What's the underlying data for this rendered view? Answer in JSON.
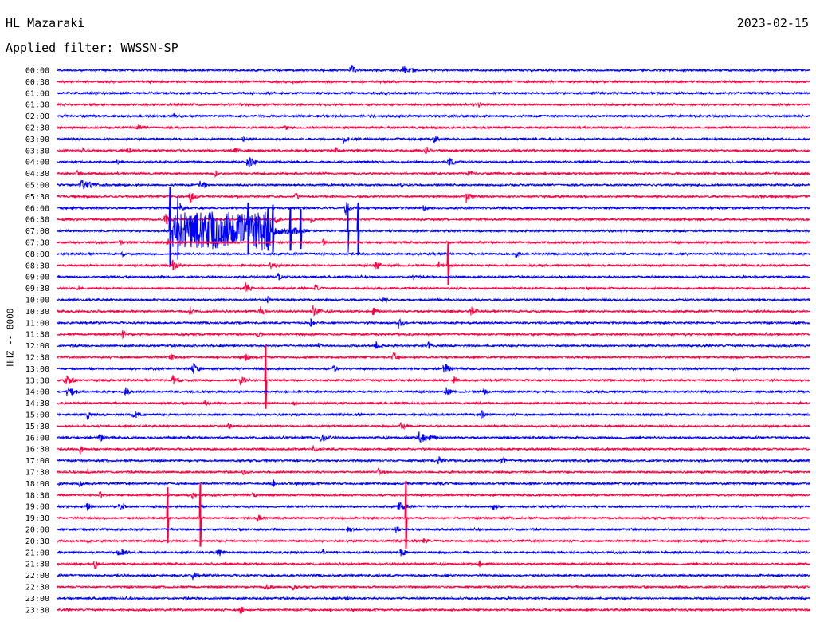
{
  "header": {
    "station": "HL Mazaraki",
    "date": "2023-02-15",
    "filter": "Applied filter: WWSSN-SP"
  },
  "colors": {
    "even_hour": "#0000ff",
    "half_hour": "#ff0040",
    "text": "#000000"
  },
  "chart_data": {
    "type": "line",
    "title": "HL Mazaraki",
    "ylabel": "HHZ -- 8000",
    "rows": [
      "00:00",
      "00:30",
      "01:00",
      "01:30",
      "02:00",
      "02:30",
      "03:00",
      "03:30",
      "04:00",
      "04:30",
      "05:00",
      "05:30",
      "06:00",
      "06:30",
      "07:00",
      "07:30",
      "08:00",
      "08:30",
      "09:00",
      "09:30",
      "10:00",
      "10:30",
      "11:00",
      "11:30",
      "12:00",
      "12:30",
      "13:00",
      "13:30",
      "14:00",
      "14:30",
      "15:00",
      "15:30",
      "16:00",
      "16:30",
      "17:00",
      "17:30",
      "18:00",
      "18:30",
      "19:00",
      "19:30",
      "20:00",
      "20:30",
      "21:00",
      "21:30",
      "22:00",
      "22:30",
      "23:00",
      "23:30"
    ],
    "row_duration_min": 30,
    "x_range_min": [
      0,
      30
    ],
    "events": [
      {
        "row": 0,
        "t": 11.7,
        "amp": 8,
        "dur": 0.6
      },
      {
        "row": 0,
        "t": 13.8,
        "amp": 6,
        "dur": 1.2
      },
      {
        "row": 1,
        "t": 9.4,
        "amp": 3,
        "dur": 0.9
      },
      {
        "row": 2,
        "t": 13.1,
        "amp": 4,
        "dur": 0.5
      },
      {
        "row": 3,
        "t": 16.8,
        "amp": 4,
        "dur": 0.7
      },
      {
        "row": 3,
        "t": 8.0,
        "amp": 2,
        "dur": 0.5
      },
      {
        "row": 4,
        "t": 4.6,
        "amp": 5,
        "dur": 0.4
      },
      {
        "row": 5,
        "t": 3.2,
        "amp": 6,
        "dur": 0.7
      },
      {
        "row": 5,
        "t": 9.1,
        "amp": 4,
        "dur": 0.4
      },
      {
        "row": 6,
        "t": 11.4,
        "amp": 6,
        "dur": 0.6
      },
      {
        "row": 6,
        "t": 15.0,
        "amp": 7,
        "dur": 0.5
      },
      {
        "row": 6,
        "t": 7.4,
        "amp": 4,
        "dur": 0.4
      },
      {
        "row": 7,
        "t": 1.0,
        "amp": 4,
        "dur": 0.4
      },
      {
        "row": 7,
        "t": 2.8,
        "amp": 5,
        "dur": 0.6
      },
      {
        "row": 7,
        "t": 7.1,
        "amp": 5,
        "dur": 0.5
      },
      {
        "row": 7,
        "t": 11.1,
        "amp": 5,
        "dur": 0.4
      },
      {
        "row": 7,
        "t": 14.7,
        "amp": 6,
        "dur": 0.6
      },
      {
        "row": 8,
        "t": 2.4,
        "amp": 6,
        "dur": 0.4
      },
      {
        "row": 8,
        "t": 7.6,
        "amp": 9,
        "dur": 0.9
      },
      {
        "row": 8,
        "t": 15.6,
        "amp": 6,
        "dur": 1.0
      },
      {
        "row": 9,
        "t": 0.8,
        "amp": 5,
        "dur": 0.4
      },
      {
        "row": 9,
        "t": 6.3,
        "amp": 5,
        "dur": 0.4
      },
      {
        "row": 9,
        "t": 16.4,
        "amp": 6,
        "dur": 0.5
      },
      {
        "row": 10,
        "t": 0.9,
        "amp": 7,
        "dur": 1.8
      },
      {
        "row": 10,
        "t": 5.7,
        "amp": 6,
        "dur": 0.8
      },
      {
        "row": 10,
        "t": 13.7,
        "amp": 5,
        "dur": 0.5
      },
      {
        "row": 11,
        "t": 5.3,
        "amp": 9,
        "dur": 0.6
      },
      {
        "row": 11,
        "t": 9.5,
        "amp": 6,
        "dur": 0.5
      },
      {
        "row": 11,
        "t": 16.3,
        "amp": 9,
        "dur": 0.6
      },
      {
        "row": 12,
        "t": 4.9,
        "amp": 7,
        "dur": 0.6
      },
      {
        "row": 12,
        "t": 11.5,
        "amp": 10,
        "dur": 0.5
      },
      {
        "row": 12,
        "t": 14.6,
        "amp": 5,
        "dur": 0.5
      },
      {
        "row": 13,
        "t": 4.3,
        "amp": 10,
        "dur": 0.6
      },
      {
        "row": 13,
        "t": 8.7,
        "amp": 7,
        "dur": 0.5
      },
      {
        "row": 13,
        "t": 10.1,
        "amp": 6,
        "dur": 0.4
      },
      {
        "row": 14,
        "t": 5.4,
        "amp": 12,
        "dur": 2.4
      },
      {
        "row": 14,
        "t": 9.5,
        "amp": 6,
        "dur": 0.4
      },
      {
        "row": 15,
        "t": 2.5,
        "amp": 5,
        "dur": 0.4
      },
      {
        "row": 15,
        "t": 4.4,
        "amp": 6,
        "dur": 0.3
      },
      {
        "row": 15,
        "t": 10.6,
        "amp": 5,
        "dur": 0.4
      },
      {
        "row": 16,
        "t": 2.6,
        "amp": 4,
        "dur": 0.3
      },
      {
        "row": 16,
        "t": 18.3,
        "amp": 6,
        "dur": 0.5
      },
      {
        "row": 17,
        "t": 4.6,
        "amp": 8,
        "dur": 0.6
      },
      {
        "row": 17,
        "t": 8.5,
        "amp": 6,
        "dur": 0.8
      },
      {
        "row": 17,
        "t": 12.7,
        "amp": 7,
        "dur": 0.6
      },
      {
        "row": 17,
        "t": 15.2,
        "amp": 6,
        "dur": 0.5
      },
      {
        "row": 18,
        "t": 8.8,
        "amp": 7,
        "dur": 0.4
      },
      {
        "row": 18,
        "t": 14.2,
        "amp": 5,
        "dur": 0.6
      },
      {
        "row": 19,
        "t": 0.8,
        "amp": 5,
        "dur": 0.4
      },
      {
        "row": 19,
        "t": 7.5,
        "amp": 8,
        "dur": 0.6
      },
      {
        "row": 19,
        "t": 10.3,
        "amp": 6,
        "dur": 0.5
      },
      {
        "row": 20,
        "t": 8.4,
        "amp": 5,
        "dur": 0.4
      },
      {
        "row": 20,
        "t": 13.0,
        "amp": 6,
        "dur": 0.5
      },
      {
        "row": 21,
        "t": 5.3,
        "amp": 7,
        "dur": 0.4
      },
      {
        "row": 21,
        "t": 8.1,
        "amp": 10,
        "dur": 0.5
      },
      {
        "row": 21,
        "t": 10.2,
        "amp": 8,
        "dur": 0.8
      },
      {
        "row": 21,
        "t": 12.6,
        "amp": 6,
        "dur": 0.5
      },
      {
        "row": 21,
        "t": 16.5,
        "amp": 7,
        "dur": 0.6
      },
      {
        "row": 22,
        "t": 10.1,
        "amp": 6,
        "dur": 0.5
      },
      {
        "row": 22,
        "t": 13.6,
        "amp": 8,
        "dur": 0.6
      },
      {
        "row": 23,
        "t": 2.6,
        "amp": 6,
        "dur": 0.6
      },
      {
        "row": 23,
        "t": 8.0,
        "amp": 5,
        "dur": 0.5
      },
      {
        "row": 24,
        "t": 10.4,
        "amp": 5,
        "dur": 0.4
      },
      {
        "row": 24,
        "t": 12.7,
        "amp": 6,
        "dur": 0.6
      },
      {
        "row": 24,
        "t": 14.8,
        "amp": 6,
        "dur": 0.5
      },
      {
        "row": 25,
        "t": 4.5,
        "amp": 7,
        "dur": 0.5
      },
      {
        "row": 25,
        "t": 7.5,
        "amp": 6,
        "dur": 0.6
      },
      {
        "row": 25,
        "t": 13.4,
        "amp": 7,
        "dur": 0.6
      },
      {
        "row": 26,
        "t": 5.4,
        "amp": 10,
        "dur": 0.7
      },
      {
        "row": 26,
        "t": 11.0,
        "amp": 6,
        "dur": 0.6
      },
      {
        "row": 26,
        "t": 15.4,
        "amp": 8,
        "dur": 0.8
      },
      {
        "row": 27,
        "t": 0.3,
        "amp": 8,
        "dur": 0.9
      },
      {
        "row": 27,
        "t": 4.6,
        "amp": 7,
        "dur": 0.7
      },
      {
        "row": 27,
        "t": 7.3,
        "amp": 7,
        "dur": 0.6
      },
      {
        "row": 27,
        "t": 15.8,
        "amp": 6,
        "dur": 0.6
      },
      {
        "row": 28,
        "t": 0.4,
        "amp": 7,
        "dur": 1.2
      },
      {
        "row": 28,
        "t": 2.7,
        "amp": 7,
        "dur": 0.6
      },
      {
        "row": 28,
        "t": 15.5,
        "amp": 6,
        "dur": 0.6
      },
      {
        "row": 28,
        "t": 17.0,
        "amp": 5,
        "dur": 0.5
      },
      {
        "row": 29,
        "t": 5.9,
        "amp": 5,
        "dur": 0.4
      },
      {
        "row": 29,
        "t": 9.4,
        "amp": 4,
        "dur": 0.5
      },
      {
        "row": 30,
        "t": 1.2,
        "amp": 7,
        "dur": 0.5
      },
      {
        "row": 30,
        "t": 3.0,
        "amp": 8,
        "dur": 0.8
      },
      {
        "row": 30,
        "t": 16.9,
        "amp": 7,
        "dur": 0.6
      },
      {
        "row": 31,
        "t": 6.8,
        "amp": 6,
        "dur": 0.6
      },
      {
        "row": 31,
        "t": 13.7,
        "amp": 6,
        "dur": 0.6
      },
      {
        "row": 32,
        "t": 1.7,
        "amp": 7,
        "dur": 0.5
      },
      {
        "row": 32,
        "t": 10.5,
        "amp": 7,
        "dur": 0.8
      },
      {
        "row": 32,
        "t": 14.4,
        "amp": 9,
        "dur": 1.3
      },
      {
        "row": 33,
        "t": 0.9,
        "amp": 7,
        "dur": 0.5
      },
      {
        "row": 33,
        "t": 10.2,
        "amp": 5,
        "dur": 0.5
      },
      {
        "row": 34,
        "t": 15.2,
        "amp": 6,
        "dur": 0.8
      },
      {
        "row": 34,
        "t": 17.7,
        "amp": 5,
        "dur": 0.7
      },
      {
        "row": 35,
        "t": 1.2,
        "amp": 5,
        "dur": 0.3
      },
      {
        "row": 35,
        "t": 7.4,
        "amp": 4,
        "dur": 0.6
      },
      {
        "row": 35,
        "t": 12.8,
        "amp": 6,
        "dur": 0.6
      },
      {
        "row": 36,
        "t": 0.1,
        "amp": 5,
        "dur": 0.3
      },
      {
        "row": 36,
        "t": 0.9,
        "amp": 6,
        "dur": 0.3
      },
      {
        "row": 36,
        "t": 8.6,
        "amp": 6,
        "dur": 0.3
      },
      {
        "row": 36,
        "t": 15.1,
        "amp": 5,
        "dur": 0.8
      },
      {
        "row": 37,
        "t": 1.7,
        "amp": 7,
        "dur": 0.4
      },
      {
        "row": 37,
        "t": 5.4,
        "amp": 6,
        "dur": 0.5
      },
      {
        "row": 37,
        "t": 7.8,
        "amp": 6,
        "dur": 0.4
      },
      {
        "row": 38,
        "t": 1.2,
        "amp": 6,
        "dur": 0.4
      },
      {
        "row": 38,
        "t": 2.5,
        "amp": 10,
        "dur": 0.4
      },
      {
        "row": 38,
        "t": 13.6,
        "amp": 8,
        "dur": 1.0
      },
      {
        "row": 38,
        "t": 17.4,
        "amp": 7,
        "dur": 0.4
      },
      {
        "row": 39,
        "t": 8.0,
        "amp": 6,
        "dur": 0.6
      },
      {
        "row": 40,
        "t": 11.6,
        "amp": 6,
        "dur": 0.5
      },
      {
        "row": 40,
        "t": 13.5,
        "amp": 5,
        "dur": 0.5
      },
      {
        "row": 41,
        "t": 1.2,
        "amp": 5,
        "dur": 0.3
      },
      {
        "row": 41,
        "t": 14.6,
        "amp": 6,
        "dur": 0.5
      },
      {
        "row": 42,
        "t": 2.4,
        "amp": 8,
        "dur": 1.0
      },
      {
        "row": 42,
        "t": 6.4,
        "amp": 7,
        "dur": 0.6
      },
      {
        "row": 42,
        "t": 10.6,
        "amp": 6,
        "dur": 0.4
      },
      {
        "row": 42,
        "t": 13.7,
        "amp": 6,
        "dur": 0.7
      },
      {
        "row": 43,
        "t": 1.5,
        "amp": 8,
        "dur": 0.3
      },
      {
        "row": 43,
        "t": 16.8,
        "amp": 6,
        "dur": 0.5
      },
      {
        "row": 44,
        "t": 5.4,
        "amp": 6,
        "dur": 0.6
      },
      {
        "row": 45,
        "t": 8.3,
        "amp": 6,
        "dur": 0.8
      },
      {
        "row": 45,
        "t": 9.4,
        "amp": 5,
        "dur": 0.4
      },
      {
        "row": 46,
        "t": 11.5,
        "amp": 4,
        "dur": 0.4
      },
      {
        "row": 47,
        "t": 7.3,
        "amp": 7,
        "dur": 0.4
      },
      {
        "row": 47,
        "t": 10.1,
        "amp": 4,
        "dur": 0.3
      }
    ],
    "tremor": [
      {
        "row": 14,
        "t_start": 4.6,
        "t_end": 8.5,
        "amp": 26,
        "dur": 4.0,
        "t_tail": 10.2
      }
    ],
    "spikes": [
      {
        "row": 14,
        "t": 4.5,
        "amp": 100
      },
      {
        "row": 14,
        "t": 4.8,
        "amp": 80
      },
      {
        "row": 14,
        "t": 7.6,
        "amp": 65
      },
      {
        "row": 14,
        "t": 8.4,
        "amp": 55
      },
      {
        "row": 14,
        "t": 8.6,
        "amp": 60
      },
      {
        "row": 14,
        "t": 9.3,
        "amp": 55
      },
      {
        "row": 14,
        "t": 9.7,
        "amp": 50
      },
      {
        "row": 14,
        "t": 11.6,
        "amp": 60
      },
      {
        "row": 14,
        "t": 12.0,
        "amp": 65
      },
      {
        "row": 17,
        "t": 15.6,
        "amp": 55
      },
      {
        "row": 27,
        "t": 8.3,
        "amp": 80
      },
      {
        "row": 39,
        "t": 4.4,
        "amp": 70
      },
      {
        "row": 39,
        "t": 5.7,
        "amp": 80
      },
      {
        "row": 39,
        "t": 13.9,
        "amp": 85
      }
    ]
  }
}
